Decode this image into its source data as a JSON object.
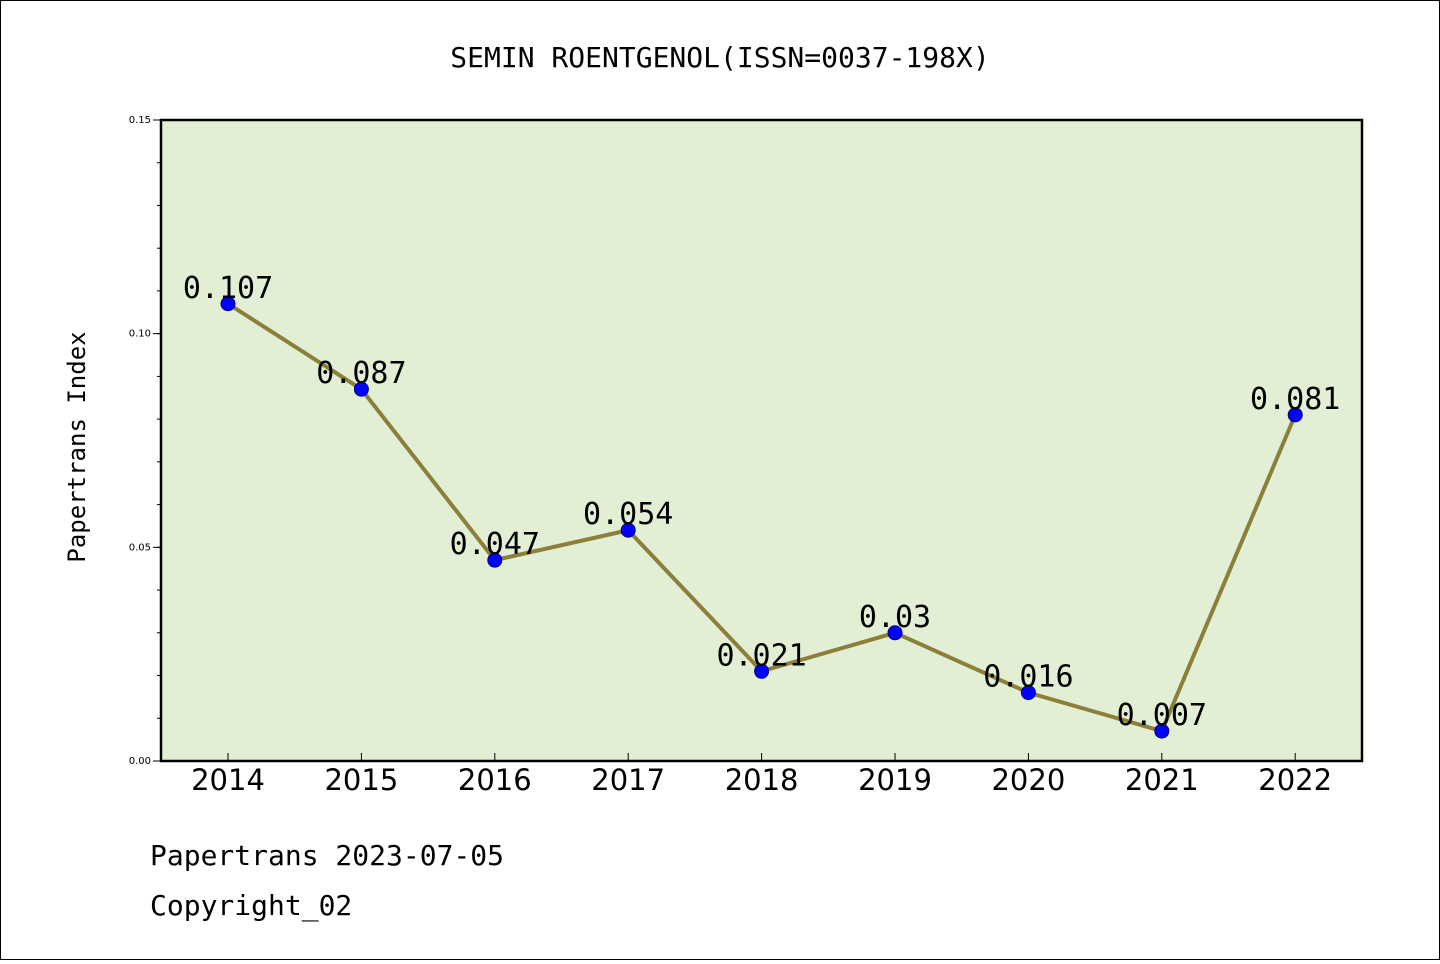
{
  "chart_data": {
    "type": "line",
    "title": "SEMIN ROENTGENOL(ISSN=0037-198X)",
    "ylabel": "Papertrans Index",
    "xlabel": "",
    "x": [
      "2014",
      "2015",
      "2016",
      "2017",
      "2018",
      "2019",
      "2020",
      "2021",
      "2022"
    ],
    "series": [
      {
        "values": [
          0.107,
          0.087,
          0.047,
          0.054,
          0.021,
          0.03,
          0.016,
          0.007,
          0.081
        ],
        "labels": [
          "0.107",
          "0.087",
          "0.047",
          "0.054",
          "0.021",
          "0.03",
          "0.016",
          "0.007",
          "0.081"
        ]
      }
    ],
    "ylim": [
      0,
      0.15
    ],
    "yticks": [
      "0.00",
      "0.05",
      "0.10",
      "0.15"
    ],
    "ytick_values": [
      0,
      0.05,
      0.1,
      0.15
    ],
    "grid": false,
    "colors": {
      "plot_background": "#e2efd4",
      "line": "#8b7f3a",
      "marker": "#0000ff"
    }
  },
  "footer": {
    "date_line": "Papertrans 2023-07-05",
    "copyright": "Copyright_02"
  }
}
